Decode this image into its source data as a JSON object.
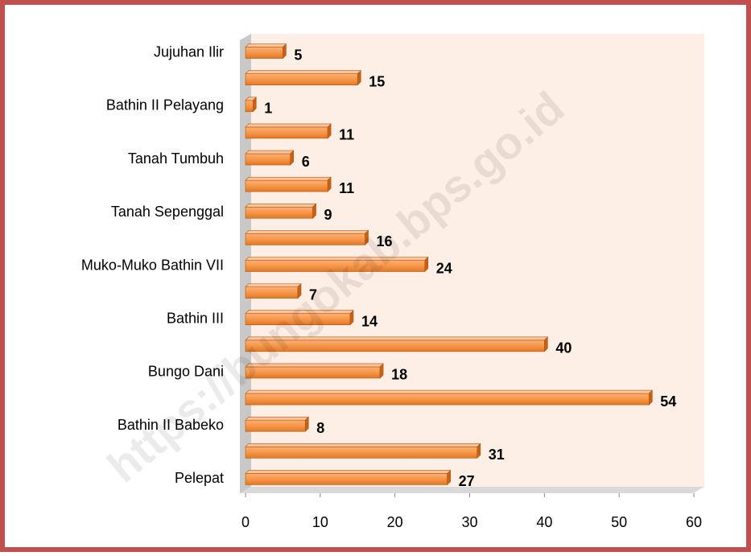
{
  "chart_data": {
    "type": "bar",
    "orientation": "horizontal",
    "categories": [
      "Jujuhan Ilir",
      null,
      "Bathin II Pelayang",
      null,
      "Tanah Tumbuh",
      null,
      "Tanah Sepenggal",
      null,
      "Muko-Muko Bathin VII",
      null,
      "Bathin III",
      null,
      "Bungo Dani",
      null,
      "Bathin II Babeko",
      null,
      "Pelepat"
    ],
    "values": [
      5,
      15,
      1,
      11,
      6,
      11,
      9,
      16,
      24,
      7,
      14,
      40,
      18,
      54,
      8,
      31,
      27
    ],
    "color": "#f79646",
    "xlim": [
      0,
      60
    ],
    "xticks": [
      0,
      10,
      20,
      30,
      40,
      50,
      60
    ],
    "watermark": "https://bungokab.bps.go.id"
  }
}
